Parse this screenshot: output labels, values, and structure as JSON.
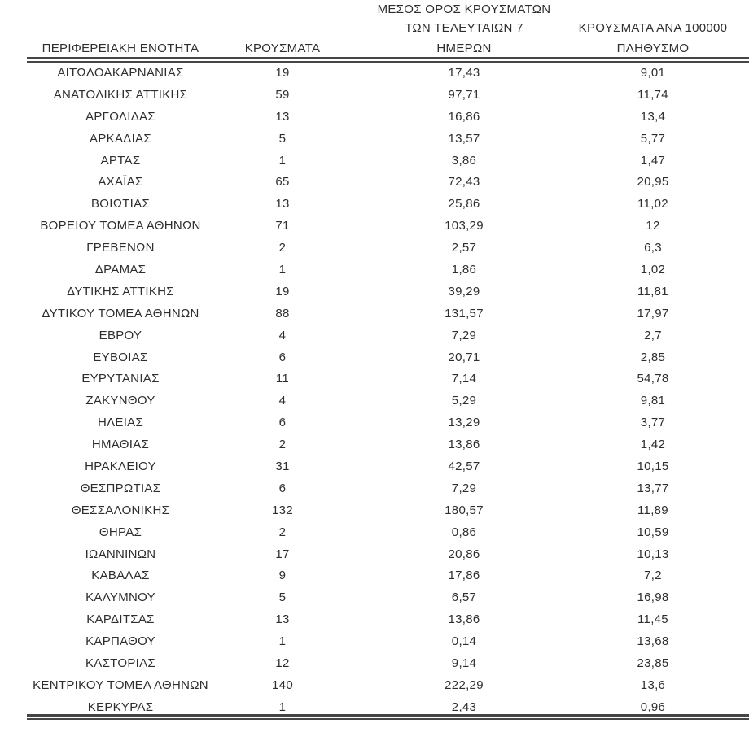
{
  "colors": {
    "background": "#ffffff",
    "text": "#2e2e2e",
    "rule": "#454545"
  },
  "table": {
    "headers": {
      "col1": "ΠΕΡΙΦΕΡΕΙΑΚΗ ΕΝΟΤΗΤΑ",
      "col2": "ΚΡΟΥΣΜΑΤΑ",
      "col3_line1": "ΜΕΣΟΣ ΟΡΟΣ ΚΡΟΥΣΜΑΤΩΝ",
      "col3_line2": "ΤΩΝ ΤΕΛΕΥΤΑΙΩΝ 7",
      "col3_line3": "ΗΜΕΡΩΝ",
      "col4_line1": "ΚΡΟΥΣΜΑΤΑ ΑΝΑ 100000",
      "col4_line2": "ΠΛΗΘΥΣΜΟ"
    },
    "rows": [
      {
        "region": "ΑΙΤΩΛΟΑΚΑΡΝΑΝΙΑΣ",
        "cases": "19",
        "avg7": "17,43",
        "per100k": "9,01"
      },
      {
        "region": "ΑΝΑΤΟΛΙΚΗΣ ΑΤΤΙΚΗΣ",
        "cases": "59",
        "avg7": "97,71",
        "per100k": "11,74"
      },
      {
        "region": "ΑΡΓΟΛΙΔΑΣ",
        "cases": "13",
        "avg7": "16,86",
        "per100k": "13,4"
      },
      {
        "region": "ΑΡΚΑΔΙΑΣ",
        "cases": "5",
        "avg7": "13,57",
        "per100k": "5,77"
      },
      {
        "region": "ΑΡΤΑΣ",
        "cases": "1",
        "avg7": "3,86",
        "per100k": "1,47"
      },
      {
        "region": "ΑΧΑΪΑΣ",
        "cases": "65",
        "avg7": "72,43",
        "per100k": "20,95"
      },
      {
        "region": "ΒΟΙΩΤΙΑΣ",
        "cases": "13",
        "avg7": "25,86",
        "per100k": "11,02"
      },
      {
        "region": "ΒΟΡΕΙΟΥ ΤΟΜΕΑ ΑΘΗΝΩΝ",
        "cases": "71",
        "avg7": "103,29",
        "per100k": "12"
      },
      {
        "region": "ΓΡΕΒΕΝΩΝ",
        "cases": "2",
        "avg7": "2,57",
        "per100k": "6,3"
      },
      {
        "region": "ΔΡΑΜΑΣ",
        "cases": "1",
        "avg7": "1,86",
        "per100k": "1,02"
      },
      {
        "region": "ΔΥΤΙΚΗΣ ΑΤΤΙΚΗΣ",
        "cases": "19",
        "avg7": "39,29",
        "per100k": "11,81"
      },
      {
        "region": "ΔΥΤΙΚΟΥ ΤΟΜΕΑ ΑΘΗΝΩΝ",
        "cases": "88",
        "avg7": "131,57",
        "per100k": "17,97"
      },
      {
        "region": "ΕΒΡΟΥ",
        "cases": "4",
        "avg7": "7,29",
        "per100k": "2,7"
      },
      {
        "region": "ΕΥΒΟΙΑΣ",
        "cases": "6",
        "avg7": "20,71",
        "per100k": "2,85"
      },
      {
        "region": "ΕΥΡΥΤΑΝΙΑΣ",
        "cases": "11",
        "avg7": "7,14",
        "per100k": "54,78"
      },
      {
        "region": "ΖΑΚΥΝΘΟΥ",
        "cases": "4",
        "avg7": "5,29",
        "per100k": "9,81"
      },
      {
        "region": "ΗΛΕΙΑΣ",
        "cases": "6",
        "avg7": "13,29",
        "per100k": "3,77"
      },
      {
        "region": "ΗΜΑΘΙΑΣ",
        "cases": "2",
        "avg7": "13,86",
        "per100k": "1,42"
      },
      {
        "region": "ΗΡΑΚΛΕΙΟΥ",
        "cases": "31",
        "avg7": "42,57",
        "per100k": "10,15"
      },
      {
        "region": "ΘΕΣΠΡΩΤΙΑΣ",
        "cases": "6",
        "avg7": "7,29",
        "per100k": "13,77"
      },
      {
        "region": "ΘΕΣΣΑΛΟΝΙΚΗΣ",
        "cases": "132",
        "avg7": "180,57",
        "per100k": "11,89"
      },
      {
        "region": "ΘΗΡΑΣ",
        "cases": "2",
        "avg7": "0,86",
        "per100k": "10,59"
      },
      {
        "region": "ΙΩΑΝΝΙΝΩΝ",
        "cases": "17",
        "avg7": "20,86",
        "per100k": "10,13"
      },
      {
        "region": "ΚΑΒΑΛΑΣ",
        "cases": "9",
        "avg7": "17,86",
        "per100k": "7,2"
      },
      {
        "region": "ΚΑΛΥΜΝΟΥ",
        "cases": "5",
        "avg7": "6,57",
        "per100k": "16,98"
      },
      {
        "region": "ΚΑΡΔΙΤΣΑΣ",
        "cases": "13",
        "avg7": "13,86",
        "per100k": "11,45"
      },
      {
        "region": "ΚΑΡΠΑΘΟΥ",
        "cases": "1",
        "avg7": "0,14",
        "per100k": "13,68"
      },
      {
        "region": "ΚΑΣΤΟΡΙΑΣ",
        "cases": "12",
        "avg7": "9,14",
        "per100k": "23,85"
      },
      {
        "region": "ΚΕΝΤΡΙΚΟΥ ΤΟΜΕΑ ΑΘΗΝΩΝ",
        "cases": "140",
        "avg7": "222,29",
        "per100k": "13,6"
      },
      {
        "region": "ΚΕΡΚΥΡΑΣ",
        "cases": "1",
        "avg7": "2,43",
        "per100k": "0,96"
      }
    ]
  }
}
